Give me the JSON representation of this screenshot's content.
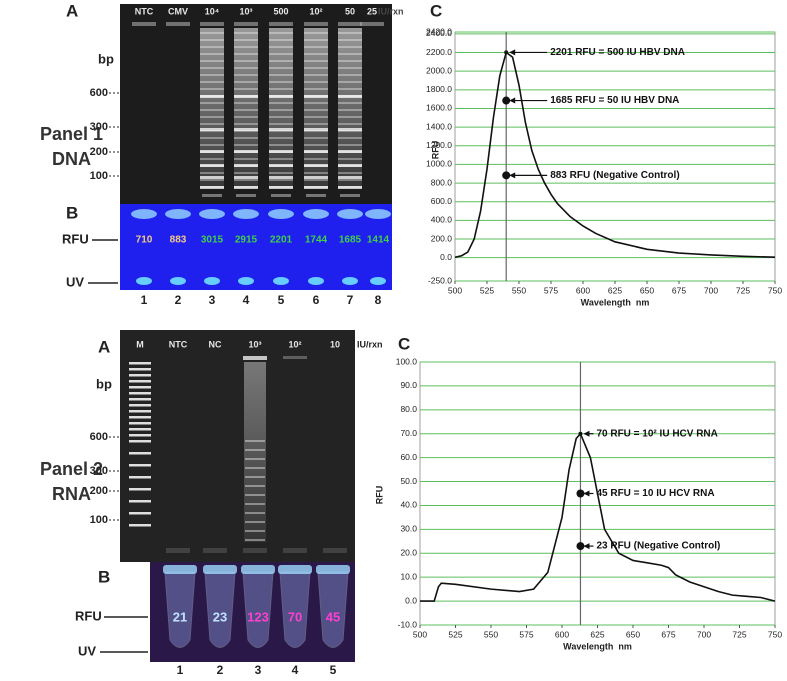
{
  "panel1": {
    "title": "Panel 1",
    "subtitle": "DNA",
    "gel": {
      "letter": "A",
      "lanes": [
        "NTC",
        "CMV",
        "10⁴",
        "10³",
        "500",
        "10²",
        "50",
        "25"
      ],
      "unit": "IU/rxn",
      "bp_label": "bp",
      "sizes": [
        600,
        300,
        200,
        100
      ]
    },
    "fluorescence": {
      "letter": "B",
      "rfu_label": "RFU",
      "uv_label": "UV",
      "rfu": [
        710,
        883,
        3015,
        2915,
        2201,
        1744,
        1685,
        1414
      ],
      "rfu_colors": [
        "#f3c98a",
        "#f3c98a",
        "#3fd04a",
        "#3fd04a",
        "#3fd04a",
        "#3fd04a",
        "#3fd04a",
        "#3fd04a"
      ],
      "lane_numbers": [
        1,
        2,
        3,
        4,
        5,
        6,
        7,
        8
      ]
    }
  },
  "panel2": {
    "title": "Panel 2",
    "subtitle": "RNA",
    "gel": {
      "letter": "A",
      "lanes": [
        "M",
        "NTC",
        "NC",
        "10³",
        "10²",
        "10"
      ],
      "unit": "IU/rxn",
      "bp_label": "bp",
      "sizes": [
        600,
        300,
        200,
        100
      ]
    },
    "fluorescence": {
      "letter": "B",
      "rfu_label": "RFU",
      "uv_label": "UV",
      "rfu": [
        21,
        23,
        123,
        70,
        45
      ],
      "rfu_colors": [
        "#bfe3ff",
        "#bfe3ff",
        "#ff3fd0",
        "#ff3fd0",
        "#ff3fd0"
      ],
      "lane_numbers": [
        1,
        2,
        3,
        4,
        5
      ]
    }
  },
  "chart_data": [
    {
      "type": "line",
      "title": "C",
      "x_label": "Wavelength  nm",
      "y_label": "RFU",
      "color": "#111111",
      "grid": true,
      "grid_color": "#5cbf5c",
      "x": [
        500,
        505,
        510,
        515,
        520,
        525,
        530,
        535,
        540,
        545,
        550,
        555,
        560,
        565,
        570,
        575,
        580,
        590,
        600,
        610,
        625,
        650,
        675,
        700,
        725,
        750
      ],
      "values": [
        5,
        20,
        60,
        200,
        500,
        950,
        1500,
        1950,
        2201,
        2150,
        1850,
        1450,
        1150,
        950,
        800,
        680,
        580,
        440,
        340,
        260,
        170,
        90,
        50,
        30,
        15,
        5
      ],
      "xlim": [
        500,
        750
      ],
      "xticks": [
        500,
        525,
        550,
        575,
        600,
        625,
        650,
        675,
        700,
        725,
        750
      ],
      "ylim": [
        -250,
        2420
      ],
      "yticks": [
        {
          "value": -250,
          "label": "-250.0"
        },
        {
          "value": 0,
          "label": "0.0"
        },
        {
          "value": 200,
          "label": "200.0"
        },
        {
          "value": 400,
          "label": "400.0"
        },
        {
          "value": 600,
          "label": "600.0"
        },
        {
          "value": 800,
          "label": "800.0"
        },
        {
          "value": 1000,
          "label": "1000.0"
        },
        {
          "value": 1200,
          "label": "1200.0"
        },
        {
          "value": 1400,
          "label": "1400.0"
        },
        {
          "value": 1600,
          "label": "1600.0"
        },
        {
          "value": 1800,
          "label": "1800.0"
        },
        {
          "value": 2000,
          "label": "2000.0"
        },
        {
          "value": 2200,
          "label": "2200.0"
        },
        {
          "value": 2400,
          "label": "2400.0"
        },
        {
          "value": 2420,
          "label": "2420.0"
        }
      ],
      "vline": 540,
      "annotations": [
        {
          "text": "2201 RFU = 500 IU HBV DNA",
          "x": 540,
          "y": 2201
        },
        {
          "text": "1685 RFU = 50 IU HBV DNA",
          "x": 540,
          "y": 1685
        },
        {
          "text": "883 RFU (Negative Control)",
          "x": 540,
          "y": 883
        }
      ]
    },
    {
      "type": "line",
      "title": "C",
      "x_label": "Wavelength  nm",
      "y_label": "RFU",
      "color": "#111111",
      "grid": true,
      "grid_color": "#5cbf5c",
      "x": [
        500,
        510,
        513,
        515,
        525,
        550,
        570,
        580,
        590,
        600,
        605,
        610,
        613,
        620,
        625,
        630,
        640,
        650,
        660,
        670,
        675,
        680,
        690,
        700,
        710,
        720,
        730,
        740,
        750
      ],
      "values": [
        0,
        0,
        6,
        7.5,
        7,
        5,
        4,
        5,
        12,
        35,
        55,
        68,
        70,
        60,
        45,
        30,
        20,
        17,
        16,
        15,
        14,
        11,
        8,
        6,
        4,
        2.5,
        2,
        1.5,
        0
      ],
      "xlim": [
        500,
        750
      ],
      "xticks": [
        500,
        525,
        550,
        575,
        600,
        625,
        650,
        675,
        700,
        725,
        750
      ],
      "ylim": [
        -10,
        100
      ],
      "yticks": [
        {
          "value": -10,
          "label": "-10.0"
        },
        {
          "value": 0,
          "label": "0.0"
        },
        {
          "value": 10,
          "label": "10.0"
        },
        {
          "value": 20,
          "label": "20.0"
        },
        {
          "value": 30,
          "label": "30.0"
        },
        {
          "value": 40,
          "label": "40.0"
        },
        {
          "value": 50,
          "label": "50.0"
        },
        {
          "value": 60,
          "label": "60.0"
        },
        {
          "value": 70,
          "label": "70.0"
        },
        {
          "value": 80,
          "label": "80.0"
        },
        {
          "value": 90,
          "label": "90.0"
        },
        {
          "value": 100,
          "label": "100.0"
        }
      ],
      "vline": 613,
      "annotations": [
        {
          "text": "70 RFU = 10² IU HCV RNA",
          "x": 613,
          "y": 70
        },
        {
          "text": "45 RFU = 10 IU HCV RNA",
          "x": 613,
          "y": 45
        },
        {
          "text": "23 RFU (Negative Control)",
          "x": 613,
          "y": 23
        }
      ]
    }
  ]
}
